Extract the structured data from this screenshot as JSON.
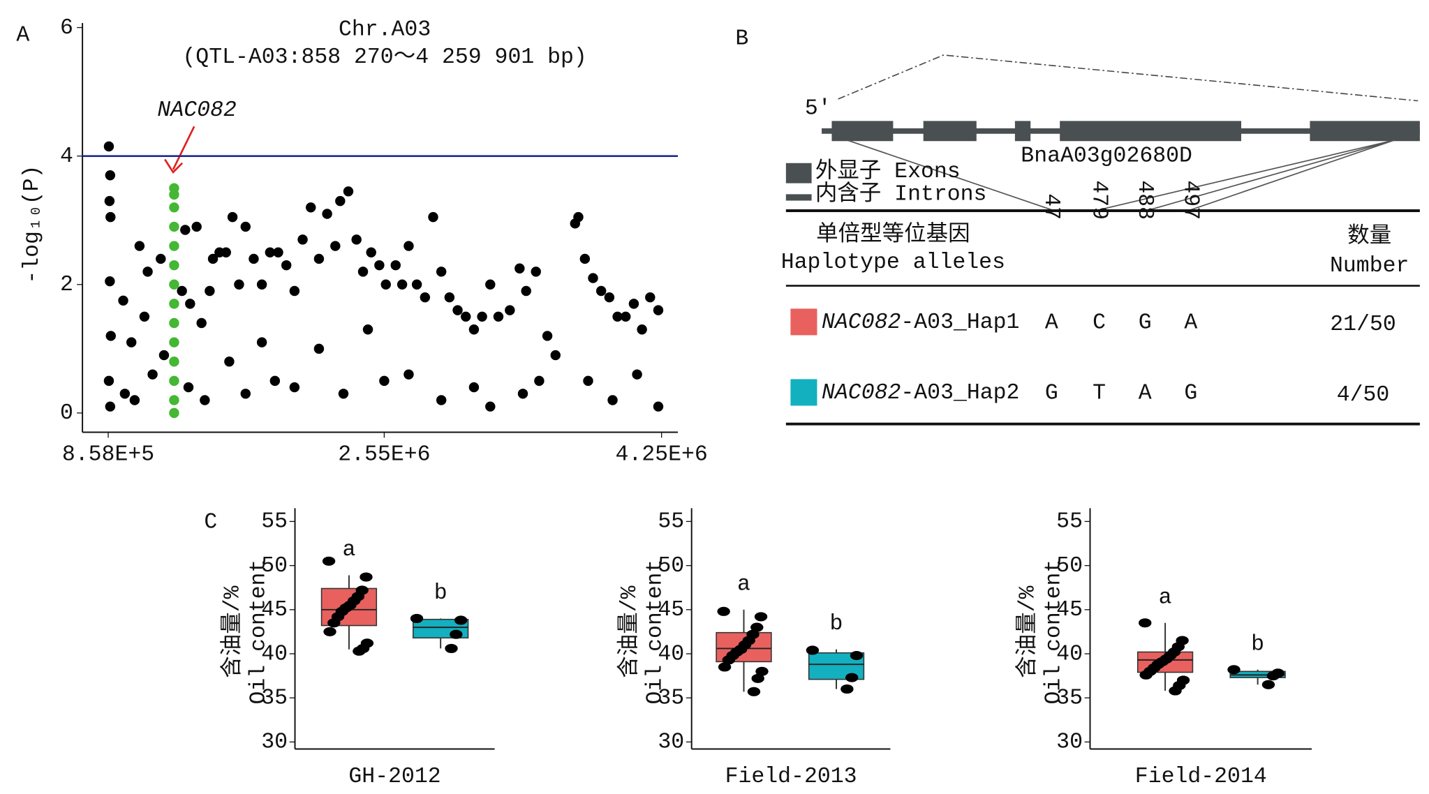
{
  "chart_data": [
    {
      "type": "scatter",
      "panel_label": "A",
      "title": "Chr.A03",
      "subtitle": "(QTL-A03:858 270～4 259 901 bp)",
      "ylabel": "-log₁₀(P)",
      "annotation": "NAC082",
      "xlim": [
        700000,
        4350000
      ],
      "ylim": [
        -0.3,
        6
      ],
      "xticks": [
        {
          "value": 858000,
          "label": "8.58E+5"
        },
        {
          "value": 2550000,
          "label": "2.55E+6"
        },
        {
          "value": 4250000,
          "label": "4.25E+6"
        }
      ],
      "yticks": [
        0,
        2,
        4,
        6
      ],
      "threshold": 4,
      "threshold_color": "#1f2a8c",
      "series": [
        {
          "color": "#000000",
          "x": [
            862000,
            870000,
            866000,
            872000,
            868000,
            874000,
            862000,
            870000,
            950000,
            1000000,
            1050000,
            1080000,
            1100000,
            1130000,
            960000,
            1020000,
            1180000,
            1200000,
            1310000,
            1330000,
            1360000,
            1400000,
            1430000,
            1480000,
            1500000,
            1350000,
            1450000,
            1540000,
            1580000,
            1620000,
            1660000,
            1700000,
            1750000,
            1800000,
            1850000,
            1900000,
            1600000,
            1700000,
            1800000,
            1880000,
            1950000,
            2000000,
            2050000,
            2100000,
            2150000,
            2200000,
            2250000,
            2280000,
            2330000,
            2380000,
            2420000,
            2470000,
            2520000,
            2560000,
            2000000,
            2150000,
            2300000,
            2450000,
            2550000,
            2620000,
            2660000,
            2700000,
            2750000,
            2800000,
            2850000,
            2900000,
            2950000,
            3000000,
            3050000,
            3100000,
            3150000,
            3200000,
            3250000,
            2700000,
            2900000,
            3100000,
            3200000,
            3320000,
            3380000,
            3420000,
            3480000,
            3550000,
            3600000,
            3400000,
            3500000,
            3720000,
            3740000,
            3780000,
            3830000,
            3880000,
            3930000,
            3980000,
            4030000,
            4080000,
            4130000,
            4180000,
            4230000,
            3800000,
            3950000,
            4100000,
            4230000
          ],
          "y": [
            4.15,
            3.7,
            3.3,
            3.05,
            2.05,
            1.2,
            0.5,
            0.1,
            1.75,
            1.1,
            2.6,
            1.5,
            2.2,
            0.6,
            0.3,
            0.2,
            2.4,
            0.9,
            1.9,
            2.85,
            1.7,
            2.9,
            1.4,
            1.9,
            2.4,
            0.4,
            0.2,
            2.5,
            2.5,
            3.05,
            2.0,
            2.9,
            2.4,
            2.0,
            2.5,
            2.5,
            0.8,
            0.3,
            1.1,
            0.5,
            2.3,
            1.9,
            2.7,
            3.2,
            2.4,
            3.1,
            2.6,
            3.3,
            3.45,
            2.7,
            2.2,
            2.5,
            2.3,
            2.0,
            0.4,
            1.0,
            0.3,
            1.3,
            0.5,
            2.3,
            2.0,
            2.6,
            2.0,
            1.8,
            3.05,
            2.2,
            1.8,
            1.6,
            1.5,
            1.3,
            1.5,
            2.0,
            1.5,
            0.6,
            0.2,
            0.4,
            0.1,
            1.6,
            2.25,
            1.9,
            2.2,
            1.2,
            0.9,
            0.3,
            0.5,
            2.95,
            3.05,
            2.4,
            2.1,
            1.9,
            1.8,
            1.5,
            1.5,
            1.7,
            1.3,
            1.8,
            1.6,
            0.5,
            0.2,
            0.6,
            0.1
          ]
        },
        {
          "color": "#44b733",
          "x": [
            1262000,
            1262000,
            1262000,
            1262000,
            1262000,
            1262000,
            1262000,
            1262000,
            1262000,
            1262000,
            1262000,
            1262000,
            1262000,
            1262000
          ],
          "y": [
            3.5,
            3.4,
            3.2,
            2.9,
            2.6,
            2.3,
            2.0,
            1.7,
            1.4,
            1.1,
            0.8,
            0.5,
            0.2,
            0
          ]
        }
      ]
    },
    {
      "type": "box",
      "panel_label": "C",
      "ylabel": [
        "含油量/%",
        "Oil content"
      ],
      "xlabel": "GH-2012",
      "ylim": [
        29.2,
        56.5
      ],
      "yticks": [
        30,
        35,
        40,
        45,
        50,
        55
      ],
      "boxes": [
        {
          "color": "#e8615f",
          "min": 40.5,
          "q1": 43.2,
          "median": 45,
          "q3": 47.4,
          "max": 48.9,
          "letter": "a",
          "points": [
            50.5,
            48.7,
            47.2,
            46.5,
            46,
            45.5,
            45.2,
            44.8,
            44.2,
            43.5,
            42.5,
            41.2,
            40.6,
            40.3
          ]
        },
        {
          "color": "#13b0bf",
          "min": 40.6,
          "q1": 41.8,
          "median": 43,
          "q3": 43.9,
          "max": 44,
          "letter": "b",
          "points": [
            44,
            43.8,
            42.2,
            40.6
          ]
        }
      ]
    },
    {
      "type": "box",
      "ylabel": [
        "含油量/%",
        "Oil content"
      ],
      "xlabel": "Field-2013",
      "ylim": [
        29.2,
        56.5
      ],
      "yticks": [
        30,
        35,
        40,
        45,
        50,
        55
      ],
      "boxes": [
        {
          "color": "#e8615f",
          "min": 35.7,
          "q1": 39.1,
          "median": 40.6,
          "q3": 42.4,
          "max": 45,
          "letter": "a",
          "points": [
            44.8,
            44.2,
            43,
            42.2,
            41.5,
            41,
            40.5,
            40.2,
            39.8,
            39.3,
            38.5,
            38,
            37.2,
            35.7
          ]
        },
        {
          "color": "#13b0bf",
          "min": 36,
          "q1": 37.1,
          "median": 38.8,
          "q3": 40.1,
          "max": 40.5,
          "letter": "b",
          "points": [
            40.4,
            39.8,
            37.3,
            36
          ]
        }
      ]
    },
    {
      "type": "box",
      "ylabel": [
        "含油量/%",
        "Oil content"
      ],
      "xlabel": "Field-2014",
      "ylim": [
        29.2,
        56.5
      ],
      "yticks": [
        30,
        35,
        40,
        45,
        50,
        55
      ],
      "boxes": [
        {
          "color": "#e8615f",
          "min": 35.8,
          "q1": 37.9,
          "median": 39.3,
          "q3": 40.2,
          "max": 43.5,
          "letter": "a",
          "points": [
            43.5,
            41.5,
            40.8,
            40.2,
            39.8,
            39.4,
            39.1,
            38.8,
            38.4,
            38,
            37.6,
            37,
            36.4,
            35.8
          ]
        },
        {
          "color": "#13b0bf",
          "min": 36.5,
          "q1": 37.3,
          "median": 37.6,
          "q3": 38,
          "max": 38.2,
          "letter": "b",
          "points": [
            38.2,
            37.8,
            37.5,
            36.5
          ]
        }
      ]
    }
  ],
  "panel_b": {
    "label": "B",
    "five_prime": "5′",
    "gene": "BnaA03g02680D",
    "legend": [
      "外显子 Exons",
      "内含子 Introns"
    ],
    "table": {
      "header": [
        "单倍型等位基因",
        "Haplotype alleles"
      ],
      "positions": [
        47,
        479,
        488,
        497
      ],
      "count_header": [
        "数量",
        "Number"
      ],
      "rows": [
        {
          "color": "#e8615f",
          "gene": "NAC082",
          "name": "-A03_Hap1",
          "alleles": [
            "A",
            "C",
            "G",
            "A"
          ],
          "count": "21/50"
        },
        {
          "color": "#13b0bf",
          "gene": "NAC082",
          "name": "-A03_Hap2",
          "alleles": [
            "G",
            "T",
            "A",
            "G"
          ],
          "count": "4/50"
        }
      ]
    }
  }
}
